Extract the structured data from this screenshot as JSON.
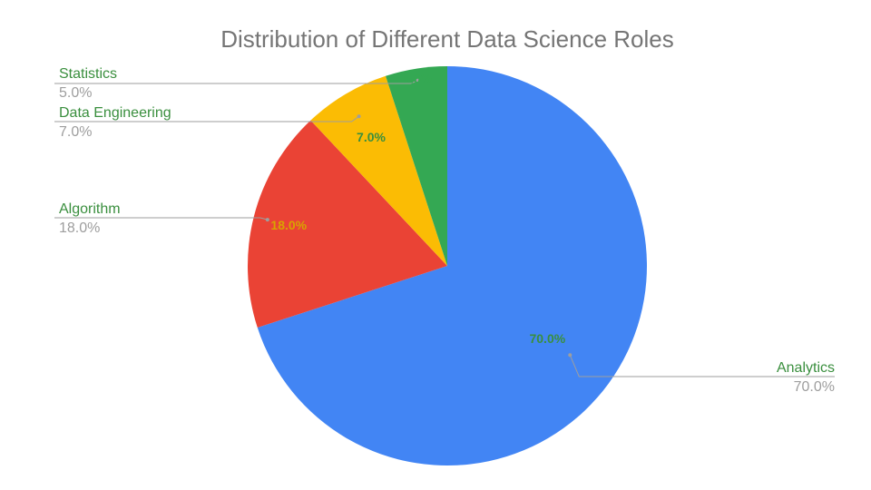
{
  "chart_data": {
    "type": "pie",
    "title": "Distribution of Different Data Science Roles",
    "start_angle_deg": 0,
    "direction": "clockwise",
    "slices": [
      {
        "label": "Analytics",
        "value": 70.0,
        "display": "70.0%",
        "color": "#4285f4",
        "inner_label_color": "#3a8f3e"
      },
      {
        "label": "Algorithm",
        "value": 18.0,
        "display": "18.0%",
        "color": "#ea4335",
        "inner_label_color": "#d9a300"
      },
      {
        "label": "Data Engineering",
        "value": 7.0,
        "display": "7.0%",
        "color": "#fbbc04",
        "inner_label_color": "#3a8f3e"
      },
      {
        "label": "Statistics",
        "value": 5.0,
        "display": "5.0%",
        "color": "#34a853",
        "inner_label_color": "#34a853"
      }
    ],
    "colors": {
      "leader_line": "#9e9e9e",
      "label_name": "#3a8f3e",
      "label_pct": "#9e9e9e",
      "title": "#757575"
    }
  }
}
